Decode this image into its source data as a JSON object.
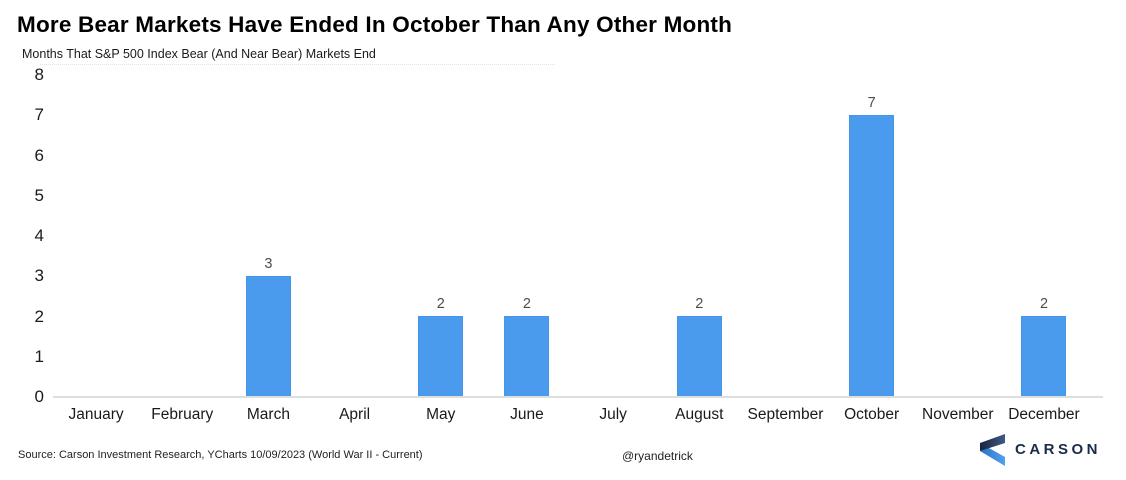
{
  "header": {
    "title": "More Bear Markets Have Ended In October Than Any Other Month",
    "subtitle": "Months That S&P 500 Index Bear (And Near Bear) Markets End"
  },
  "chart_data": {
    "type": "bar",
    "title": "More Bear Markets Have Ended In October Than Any Other Month",
    "subtitle": "Months That S&P 500 Index Bear (And Near Bear) Markets End",
    "categories": [
      "January",
      "February",
      "March",
      "April",
      "May",
      "June",
      "July",
      "August",
      "September",
      "October",
      "November",
      "December"
    ],
    "values": [
      0,
      0,
      3,
      0,
      2,
      2,
      0,
      2,
      0,
      7,
      0,
      2
    ],
    "xlabel": "",
    "ylabel": "",
    "ylim": [
      0,
      8
    ],
    "yticks": [
      0,
      1,
      2,
      3,
      4,
      5,
      6,
      7,
      8
    ],
    "grid": "off",
    "legend": "none",
    "value_labels": "shown above non-zero bars"
  },
  "footer": {
    "source": "Source: Carson Investment Research, YCharts 10/09/2023 (World War II - Current)",
    "handle": "@ryandetrick",
    "brand_name": "CARSON"
  },
  "colors": {
    "bar": "#4A9BEE",
    "bar_border": "#3F8EDC",
    "baseline": "#DEDEDE",
    "value_label": "#4D4D4D",
    "axis_label": "#1A1A1A",
    "brand_navy": "#1B2B4A",
    "logo_dark": "#15233F",
    "logo_slate": "#3E5B85",
    "logo_blue_dark": "#2C71C7",
    "logo_blue_light": "#52A0EC"
  },
  "icons": {
    "brand_logo": "carson-chevron-icon"
  }
}
